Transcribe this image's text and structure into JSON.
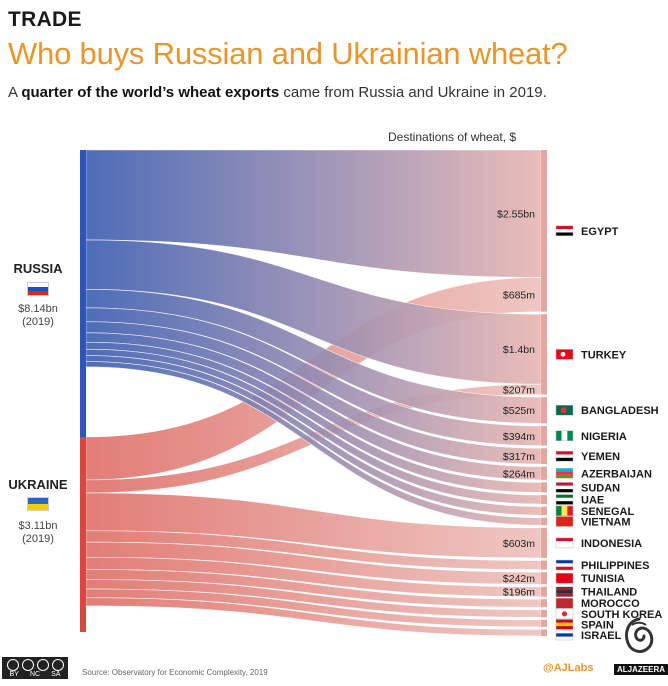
{
  "header": {
    "kicker": "TRADE",
    "title": "Who buys Russian and Ukrainian wheat?",
    "subtitle_bold": "quarter of the world’s wheat exports",
    "subtitle_pre": "A ",
    "subtitle_post": " came from Russia and Ukraine in 2019."
  },
  "chart_data": {
    "type": "sankey",
    "unit": "$",
    "header": "Destinations of wheat, $",
    "sources": [
      {
        "name": "RUSSIA",
        "value_label": "$8.14bn",
        "year_label": "(2019)",
        "value_bn": 8.14,
        "color": "#3d5fb2"
      },
      {
        "name": "UKRAINE",
        "value_label": "$3.11bn",
        "year_label": "(2019)",
        "value_bn": 3.11,
        "color": "#d9574f"
      }
    ],
    "destinations": [
      {
        "name": "EGYPT",
        "flag": "egypt-flag"
      },
      {
        "name": "TURKEY",
        "flag": "turkey-flag"
      },
      {
        "name": "BANGLADESH",
        "flag": "bangladesh-flag"
      },
      {
        "name": "NIGERIA",
        "flag": "nigeria-flag"
      },
      {
        "name": "YEMEN",
        "flag": "yemen-flag"
      },
      {
        "name": "AZERBAIJAN",
        "flag": "azerbaijan-flag"
      },
      {
        "name": "SUDAN",
        "flag": "sudan-flag"
      },
      {
        "name": "UAE",
        "flag": "uae-flag"
      },
      {
        "name": "SENEGAL",
        "flag": "senegal-flag"
      },
      {
        "name": "VIETNAM",
        "flag": "vietnam-flag"
      },
      {
        "name": "INDONESIA",
        "flag": "indonesia-flag"
      },
      {
        "name": "PHILIPPINES",
        "flag": "philippines-flag"
      },
      {
        "name": "TUNISIA",
        "flag": "tunisia-flag"
      },
      {
        "name": "THAILAND",
        "flag": "thailand-flag"
      },
      {
        "name": "MOROCCO",
        "flag": "morocco-flag"
      },
      {
        "name": "SOUTH KOREA",
        "flag": "south-korea-flag"
      },
      {
        "name": "SPAIN",
        "flag": "spain-flag"
      },
      {
        "name": "ISRAEL",
        "flag": "israel-flag"
      }
    ],
    "flows": [
      {
        "source": "RUSSIA",
        "target": "EGYPT",
        "value_bn": 2.55,
        "label": "$2.55bn"
      },
      {
        "source": "UKRAINE",
        "target": "EGYPT",
        "value_bn": 0.685,
        "label": "$685m"
      },
      {
        "source": "RUSSIA",
        "target": "TURKEY",
        "value_bn": 1.4,
        "label": "$1.4bn"
      },
      {
        "source": "UKRAINE",
        "target": "TURKEY",
        "value_bn": 0.207,
        "label": "$207m"
      },
      {
        "source": "RUSSIA",
        "target": "BANGLADESH",
        "value_bn": 0.525,
        "label": "$525m"
      },
      {
        "source": "RUSSIA",
        "target": "NIGERIA",
        "value_bn": 0.394,
        "label": "$394m"
      },
      {
        "source": "RUSSIA",
        "target": "YEMEN",
        "value_bn": 0.317,
        "label": "$317m"
      },
      {
        "source": "RUSSIA",
        "target": "AZERBAIJAN",
        "value_bn": 0.264,
        "label": "$264m"
      },
      {
        "source": "RUSSIA",
        "target": "SUDAN",
        "value_bn": 0.2,
        "label": ""
      },
      {
        "source": "RUSSIA",
        "target": "UAE",
        "value_bn": 0.18,
        "label": ""
      },
      {
        "source": "RUSSIA",
        "target": "SENEGAL",
        "value_bn": 0.17,
        "label": ""
      },
      {
        "source": "RUSSIA",
        "target": "VIETNAM",
        "value_bn": 0.15,
        "label": ""
      },
      {
        "source": "UKRAINE",
        "target": "INDONESIA",
        "value_bn": 0.603,
        "label": "$603m"
      },
      {
        "source": "UKRAINE",
        "target": "PHILIPPINES",
        "value_bn": 0.18,
        "label": ""
      },
      {
        "source": "UKRAINE",
        "target": "TUNISIA",
        "value_bn": 0.242,
        "label": "$242m"
      },
      {
        "source": "UKRAINE",
        "target": "THAILAND",
        "value_bn": 0.196,
        "label": "$196m"
      },
      {
        "source": "UKRAINE",
        "target": "MOROCCO",
        "value_bn": 0.16,
        "label": ""
      },
      {
        "source": "UKRAINE",
        "target": "SOUTH KOREA",
        "value_bn": 0.15,
        "label": ""
      },
      {
        "source": "UKRAINE",
        "target": "SPAIN",
        "value_bn": 0.14,
        "label": ""
      },
      {
        "source": "UKRAINE",
        "target": "ISRAEL",
        "value_bn": 0.13,
        "label": ""
      }
    ]
  },
  "footer": {
    "source": "Source: Observatory for Economic Complexity, 2019",
    "handle": "@AJLabs",
    "brand": "ALJAZEERA",
    "license": [
      "BY",
      "NC",
      "SA"
    ]
  }
}
